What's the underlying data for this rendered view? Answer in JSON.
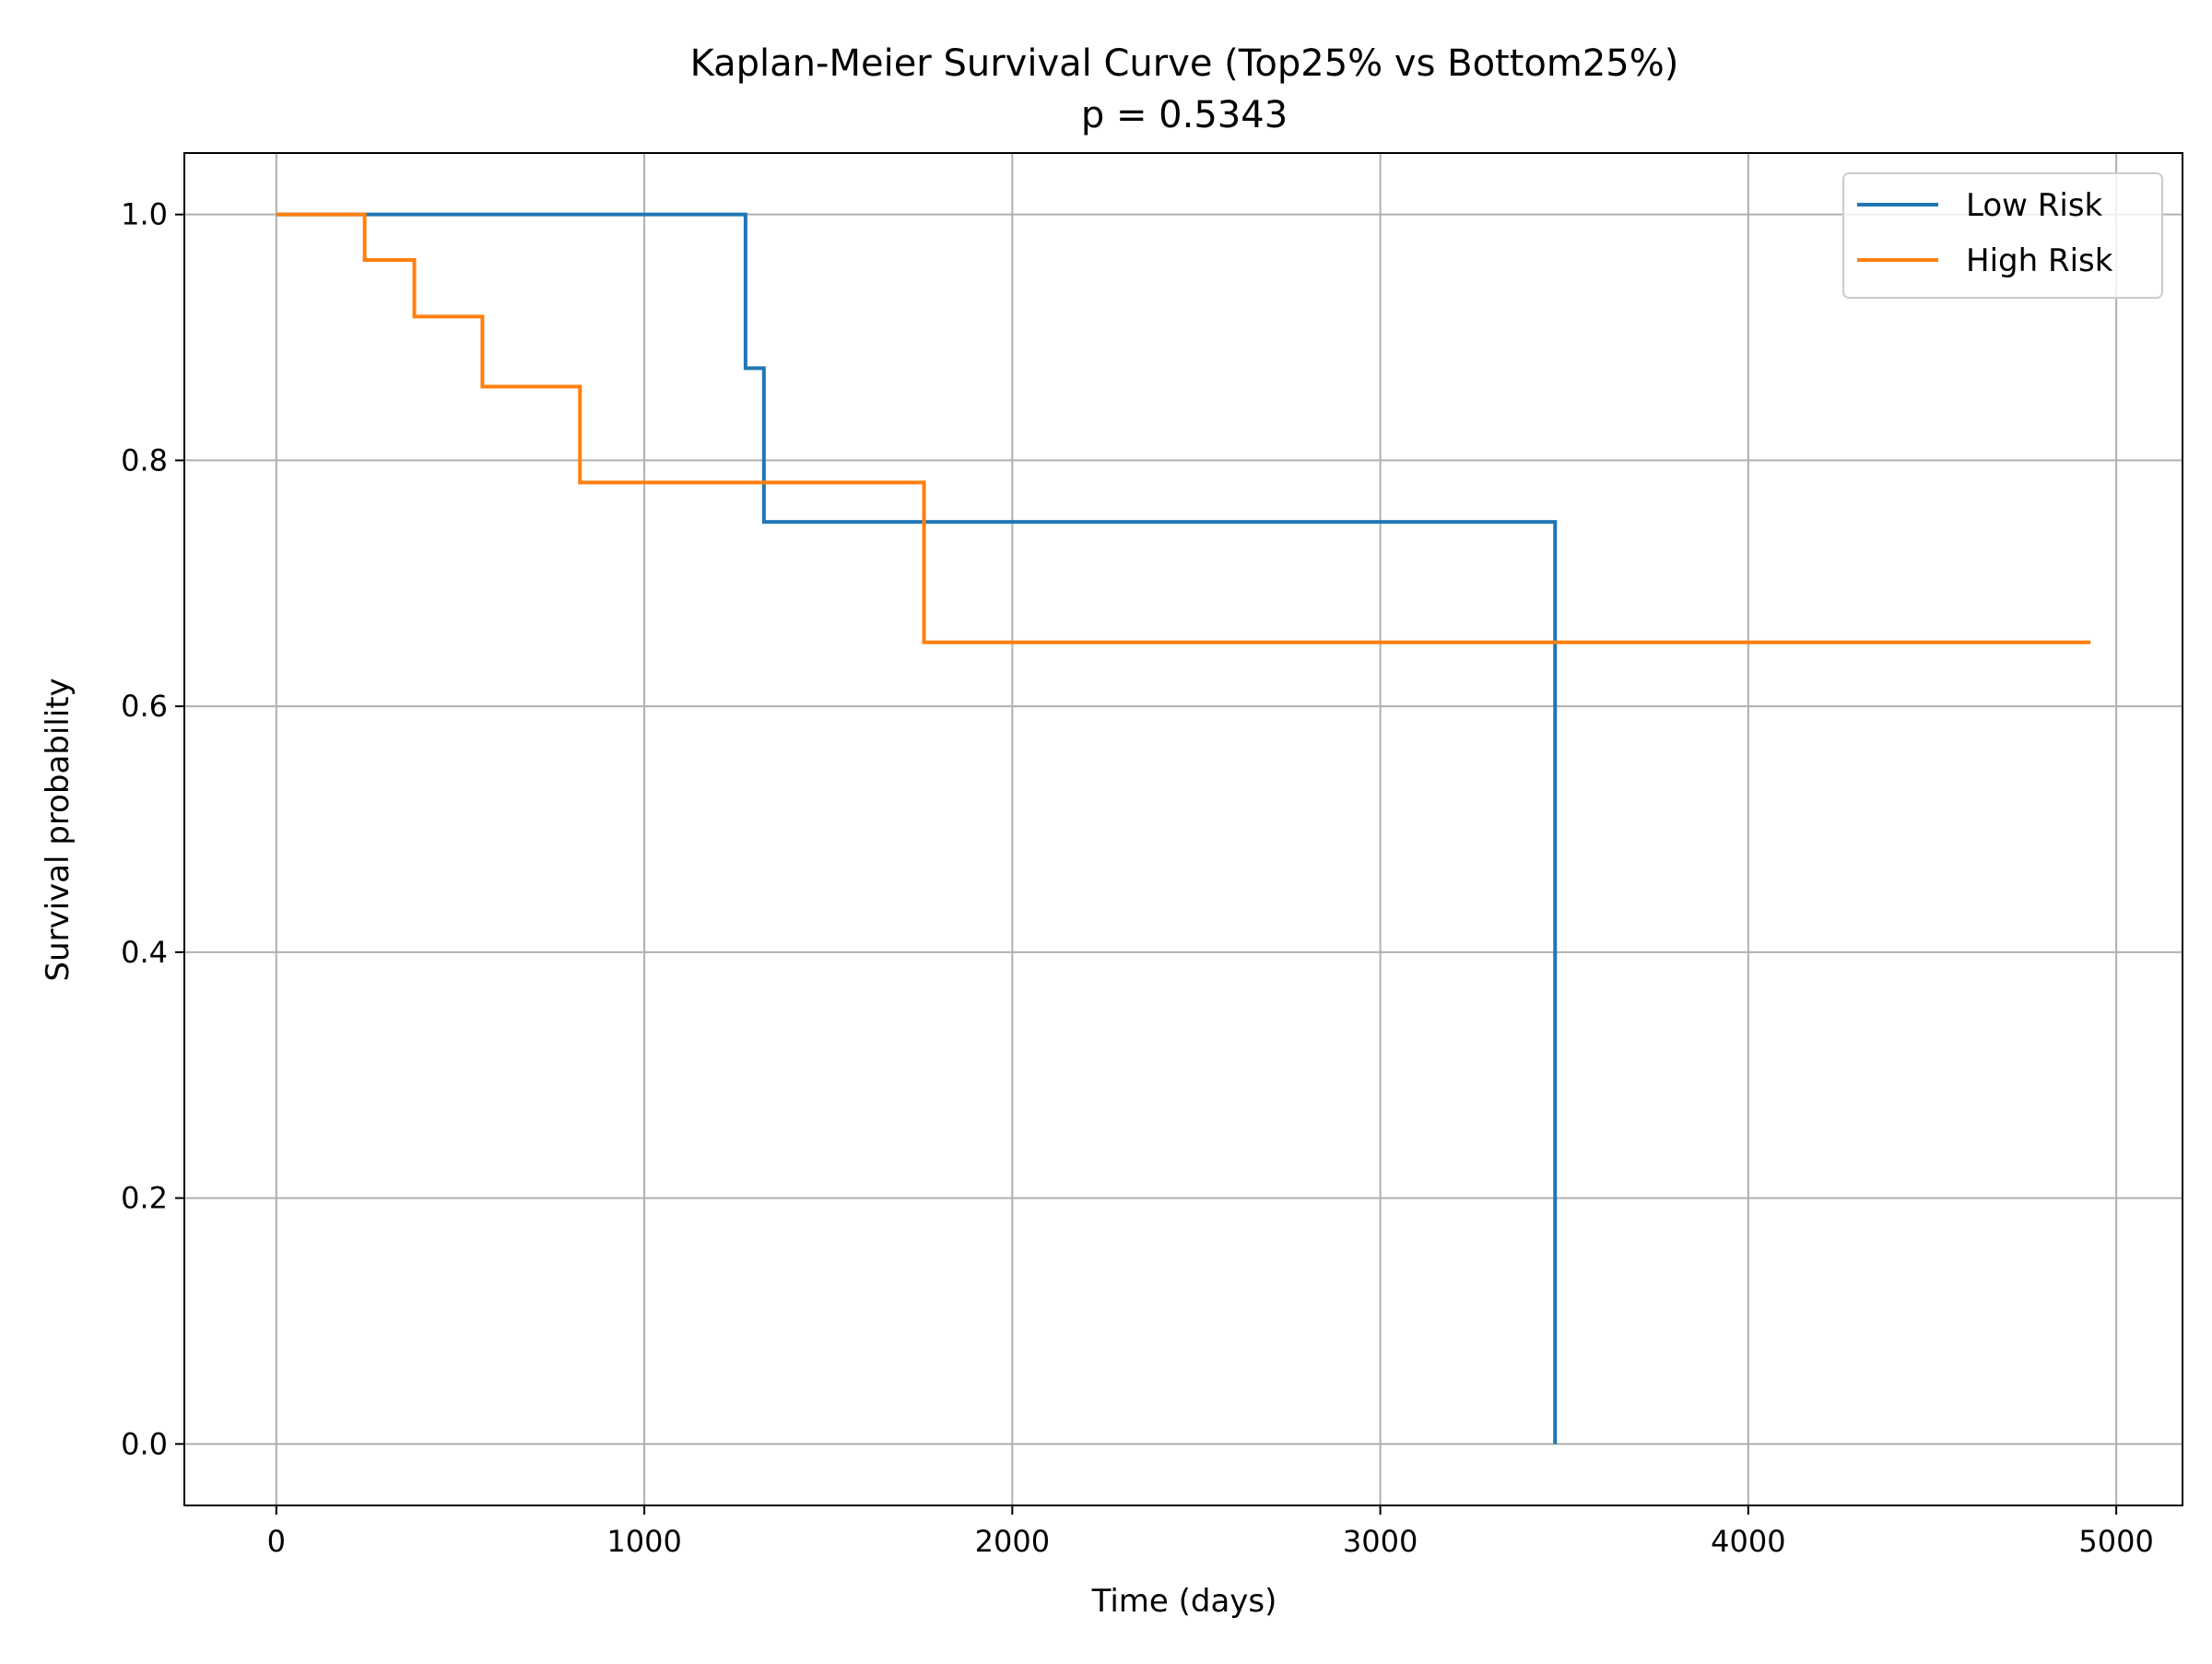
{
  "chart_data": {
    "type": "line",
    "step": "post",
    "title": "Kaplan-Meier Survival Curve (Top25% vs Bottom25%)",
    "subtitle": "p = 0.5343",
    "xlabel": "Time (days)",
    "ylabel": "Survival probability",
    "xlim": [
      -250,
      5180
    ],
    "ylim": [
      -0.05,
      1.05
    ],
    "xticks": [
      0,
      1000,
      2000,
      3000,
      4000,
      5000
    ],
    "yticks": [
      0.0,
      0.2,
      0.4,
      0.6,
      0.8,
      1.0
    ],
    "xtick_labels": [
      "0",
      "1000",
      "2000",
      "3000",
      "4000",
      "5000"
    ],
    "ytick_labels": [
      "0.0",
      "0.2",
      "0.4",
      "0.6",
      "0.8",
      "1.0"
    ],
    "grid": true,
    "legend_position": "top-right",
    "series": [
      {
        "name": "Low Risk",
        "color": "#1f77b4",
        "x": [
          0,
          1275,
          1325,
          3475,
          3475
        ],
        "y": [
          1.0,
          0.875,
          0.75,
          0.75,
          0.0
        ]
      },
      {
        "name": "High Risk",
        "color": "#ff7f0e",
        "x": [
          0,
          240,
          375,
          560,
          825,
          1760,
          4930
        ],
        "y": [
          1.0,
          0.963,
          0.917,
          0.86,
          0.782,
          0.652,
          0.652
        ]
      }
    ]
  }
}
